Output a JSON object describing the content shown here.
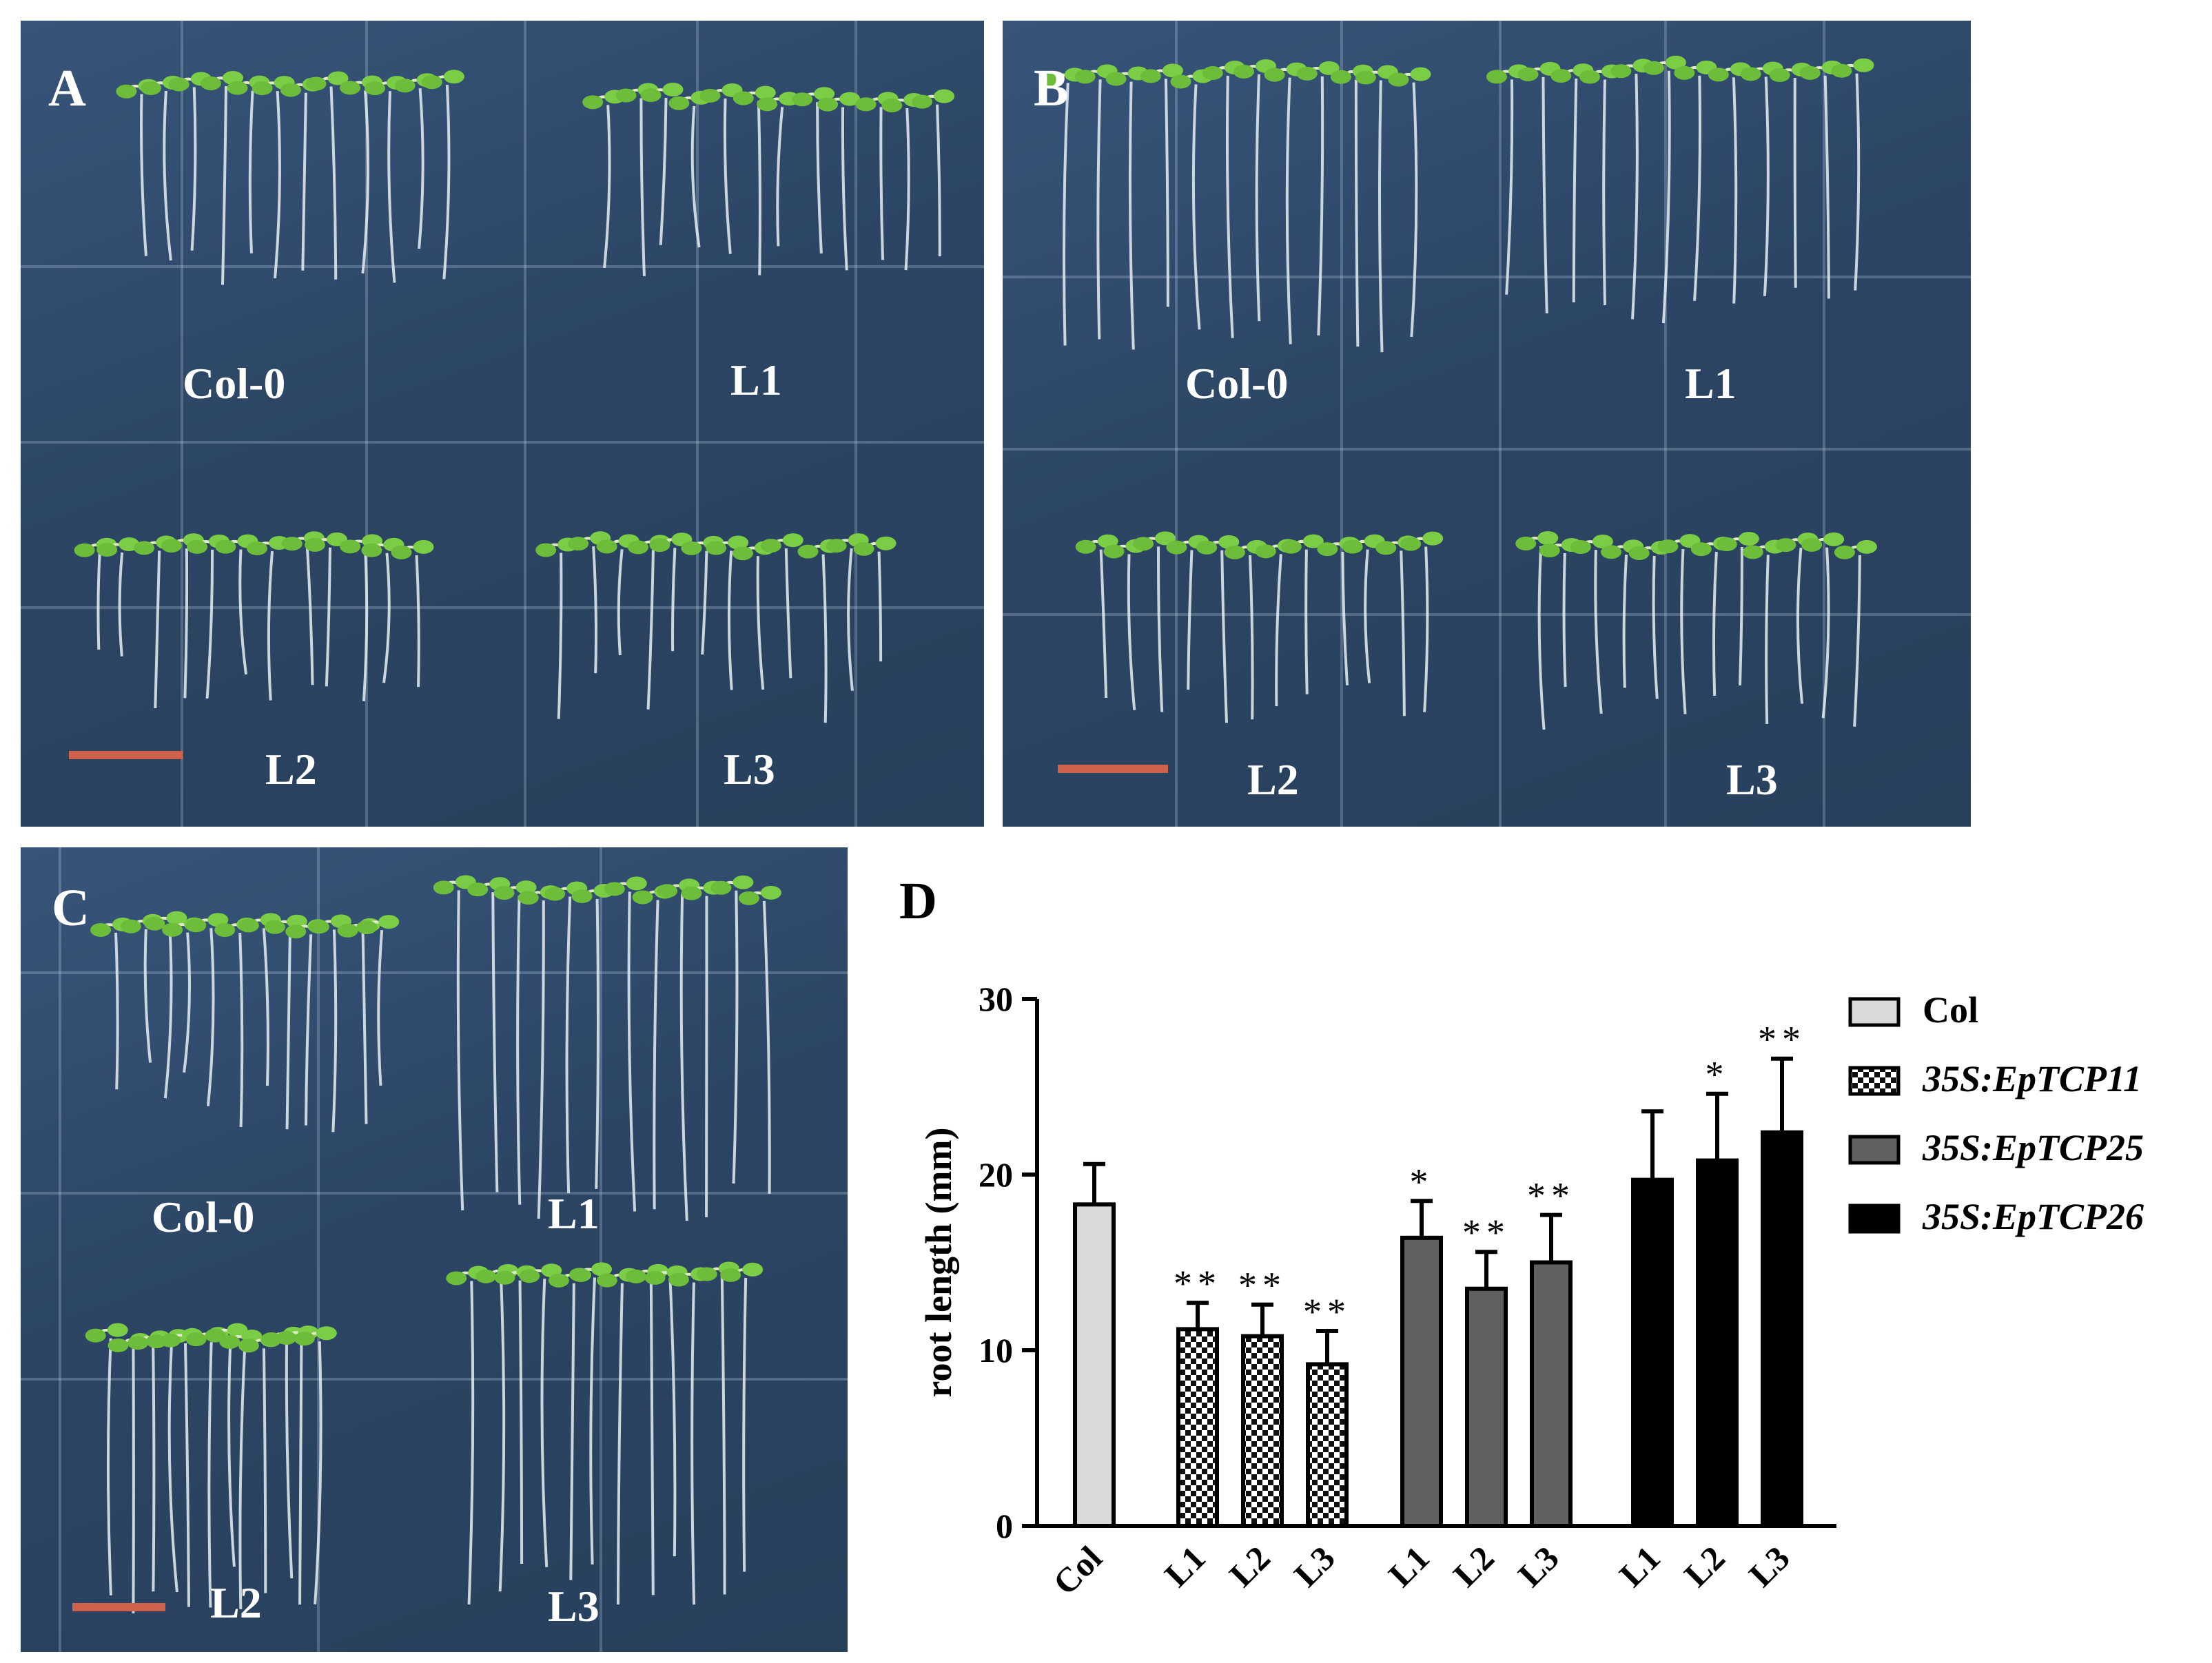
{
  "panels": [
    {
      "letter": "A",
      "labels": [
        "Col-0",
        "L1",
        "L2",
        "L3"
      ]
    },
    {
      "letter": "B",
      "labels": [
        "Col-0",
        "L1",
        "L2",
        "L3"
      ]
    },
    {
      "letter": "C",
      "labels": [
        "Col-0",
        "L1",
        "L2",
        "L3"
      ]
    }
  ],
  "panel_d_letter": "D",
  "colors": {
    "plate": "#2f4a6a",
    "seedling_leaf": "#6dbd3a",
    "root": "#e8eef2",
    "scale_bar": "#d0614d",
    "col_fill": "#d9d9d9",
    "tcp25_fill": "#606060",
    "tcp26_fill": "#000000"
  },
  "chart_data": {
    "type": "bar",
    "ylabel": "root length (mm)",
    "ylim": [
      0,
      30
    ],
    "yticks": [
      0,
      10,
      20,
      30
    ],
    "groups": [
      {
        "name": "Col",
        "pattern": "light",
        "bars": [
          {
            "label": "Col",
            "value": 18.3,
            "error": 2.3,
            "sig": ""
          }
        ]
      },
      {
        "name": "35S:EpTCP11",
        "pattern": "checker",
        "bars": [
          {
            "label": "L1",
            "value": 11.2,
            "error": 1.5,
            "sig": "**"
          },
          {
            "label": "L2",
            "value": 10.8,
            "error": 1.8,
            "sig": "**"
          },
          {
            "label": "L3",
            "value": 9.2,
            "error": 1.9,
            "sig": "**"
          }
        ]
      },
      {
        "name": "35S:EpTCP25",
        "pattern": "gray",
        "bars": [
          {
            "label": "L1",
            "value": 16.4,
            "error": 2.1,
            "sig": "*"
          },
          {
            "label": "L2",
            "value": 13.5,
            "error": 2.1,
            "sig": "**"
          },
          {
            "label": "L3",
            "value": 15.0,
            "error": 2.7,
            "sig": "**"
          }
        ]
      },
      {
        "name": "35S:EpTCP26",
        "pattern": "black",
        "bars": [
          {
            "label": "L1",
            "value": 19.7,
            "error": 3.9,
            "sig": ""
          },
          {
            "label": "L2",
            "value": 20.8,
            "error": 3.8,
            "sig": "*"
          },
          {
            "label": "L3",
            "value": 22.4,
            "error": 4.2,
            "sig": "**"
          }
        ]
      }
    ],
    "legend": [
      {
        "label": "Col",
        "pattern": "light",
        "italic": false
      },
      {
        "label": "35S:EpTCP11",
        "pattern": "checker",
        "italic": true
      },
      {
        "label": "35S:EpTCP25",
        "pattern": "gray",
        "italic": true
      },
      {
        "label": "35S:EpTCP26",
        "pattern": "black",
        "italic": true
      }
    ]
  }
}
